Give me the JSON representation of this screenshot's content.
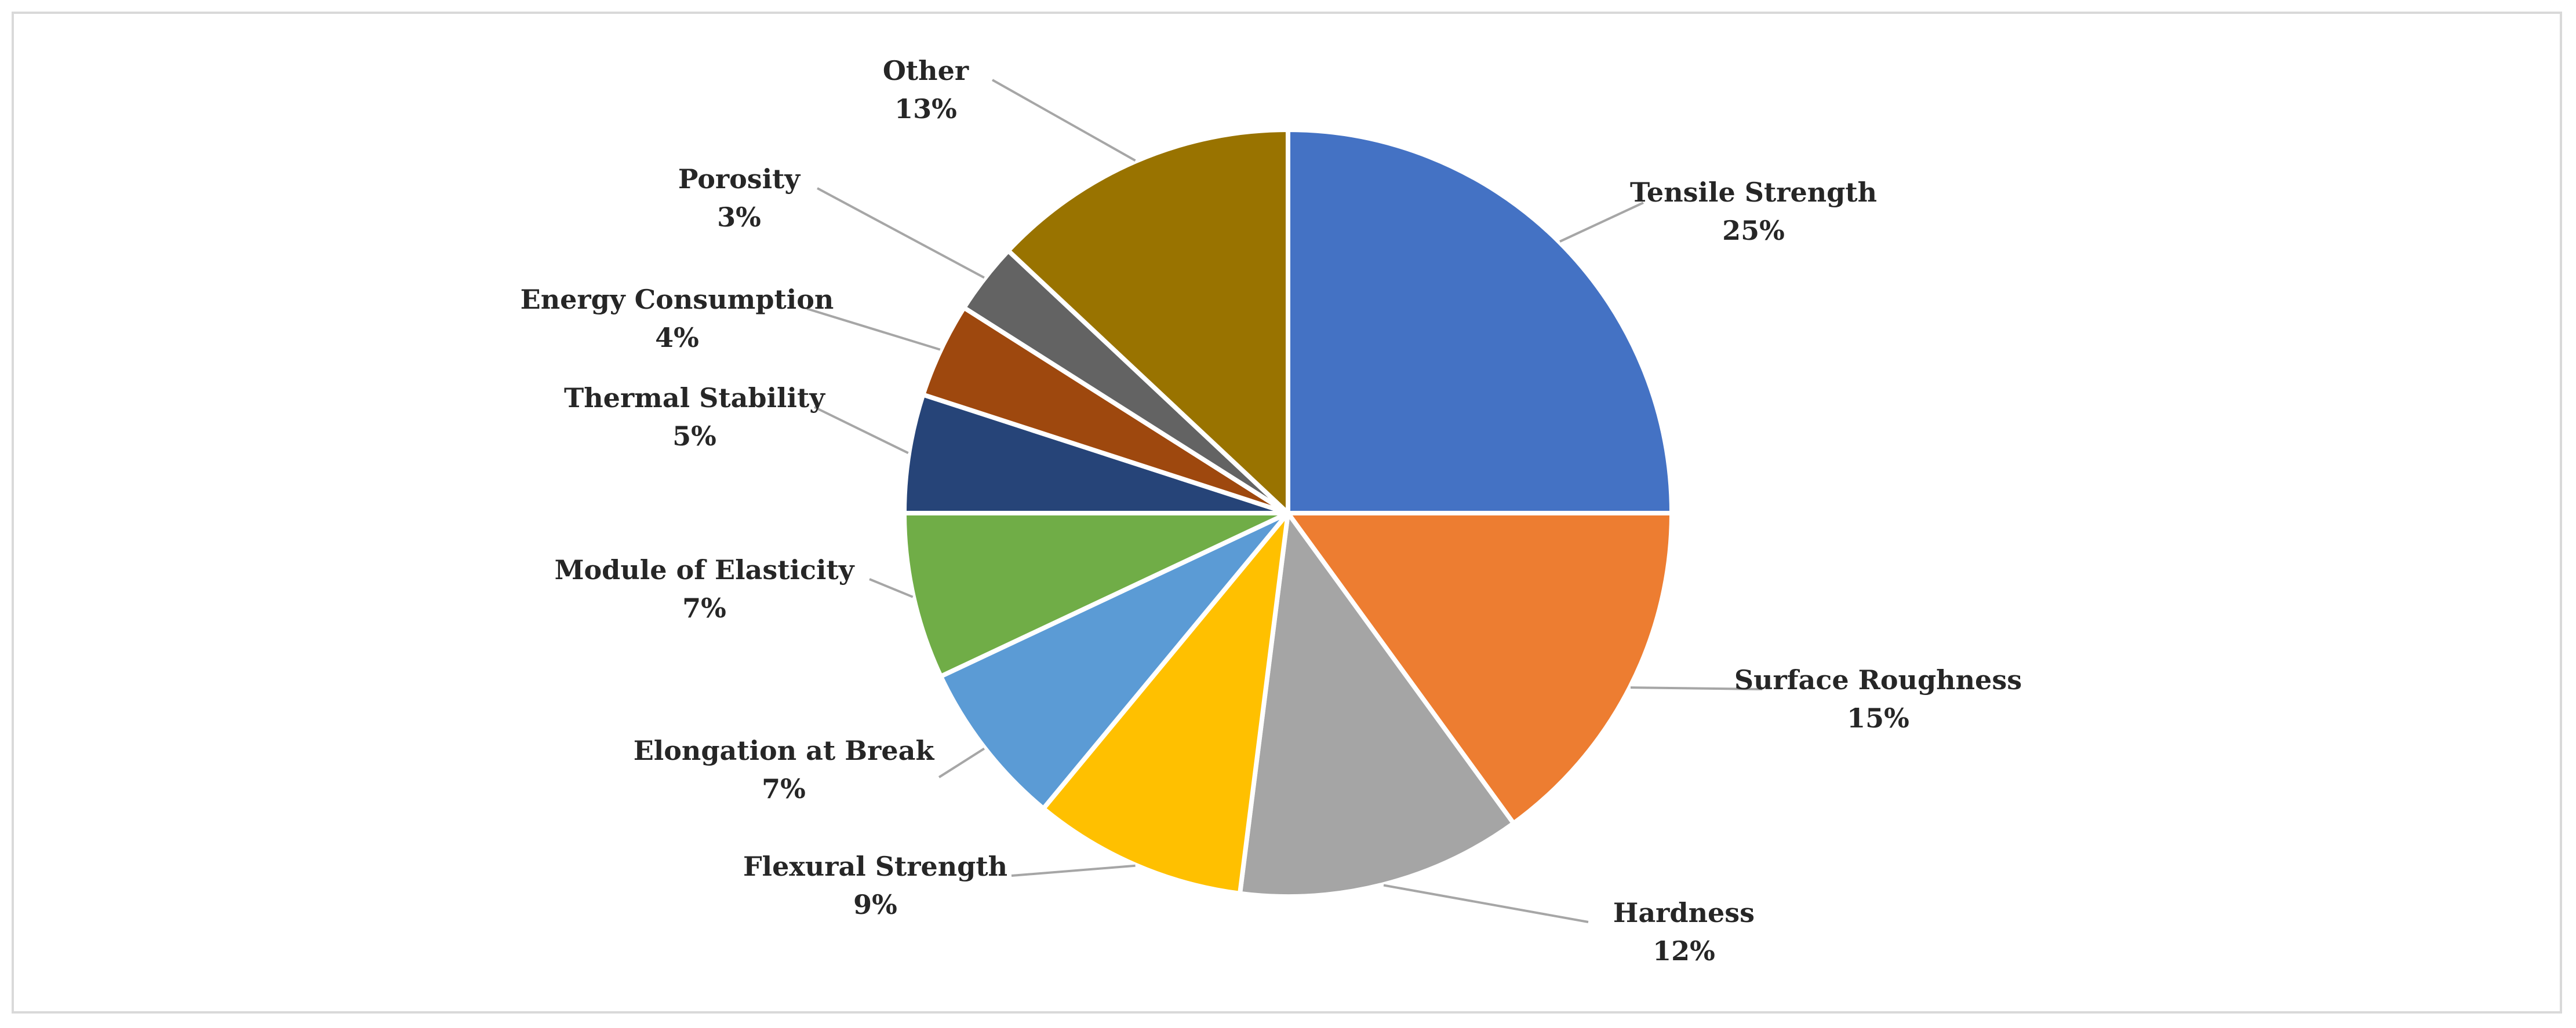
{
  "chart_data": {
    "type": "pie",
    "title": "",
    "start_angle_deg": 0,
    "direction": "clockwise",
    "legend": "none",
    "data_labels": "category name and percentage, outside with leader lines",
    "slices": [
      {
        "name": "Tensile Strength",
        "value": 25,
        "label": "25%",
        "color": "#4472C4"
      },
      {
        "name": "Surface Roughness",
        "value": 15,
        "label": "15%",
        "color": "#ED7D31"
      },
      {
        "name": "Hardness",
        "value": 12,
        "label": "12%",
        "color": "#A5A5A5"
      },
      {
        "name": "Flexural Strength",
        "value": 9,
        "label": "9%",
        "color": "#FFC000"
      },
      {
        "name": "Elongation at Break",
        "value": 7,
        "label": "7%",
        "color": "#5B9BD5"
      },
      {
        "name": "Module of Elasticity",
        "value": 7,
        "label": "7%",
        "color": "#70AD47"
      },
      {
        "name": "Thermal Stability",
        "value": 5,
        "label": "5%",
        "color": "#264478"
      },
      {
        "name": "Energy Consumption",
        "value": 4,
        "label": "4%",
        "color": "#9E480E"
      },
      {
        "name": "Porosity",
        "value": 3,
        "label": "3%",
        "color": "#636363"
      },
      {
        "name": "Other",
        "value": 13,
        "label": "13%",
        "color": "#997300"
      }
    ]
  }
}
